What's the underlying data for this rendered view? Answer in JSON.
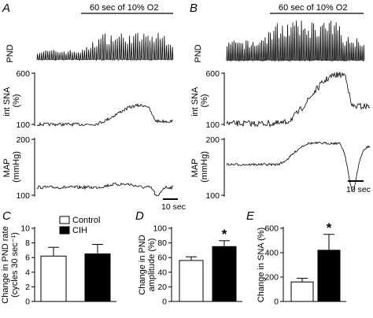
{
  "figure": {
    "panels": [
      {
        "id": "A",
        "label": "A",
        "stimulus": "60 sec of 10% O2"
      },
      {
        "id": "B",
        "label": "B",
        "stimulus": "60 sec of 10% O2"
      },
      {
        "id": "C",
        "label": "C"
      },
      {
        "id": "D",
        "label": "D"
      },
      {
        "id": "E",
        "label": "E"
      }
    ],
    "traces": {
      "pnd_label": "PND",
      "sna_label": "int SNA\n(%)",
      "map_label": "MAP\n(mmHg)",
      "sna_ticks": [
        "600",
        "100"
      ],
      "map_ticks": [
        "200",
        "100"
      ],
      "scale_bar_A": "10 sec",
      "scale_bar_B": "10 sec"
    },
    "legend": [
      {
        "label": "Control",
        "color": "#ffffff"
      },
      {
        "label": "CIH",
        "color": "#000000"
      }
    ]
  },
  "chart_data": [
    {
      "panel": "C",
      "type": "bar",
      "categories": [
        "Control",
        "CIH"
      ],
      "values": [
        6.2,
        6.5
      ],
      "errors": [
        1.2,
        1.3
      ],
      "colors": [
        "#ffffff",
        "#000000"
      ],
      "ylabel": "Change in PND rate\n(cycles 30 sec⁻¹)",
      "ylim": [
        0,
        10
      ],
      "yticks": [
        "0",
        "2",
        "4",
        "6",
        "8",
        "10"
      ],
      "significance": ""
    },
    {
      "panel": "D",
      "type": "bar",
      "categories": [
        "Control",
        "CIH"
      ],
      "values": [
        56,
        75
      ],
      "errors": [
        5,
        8
      ],
      "colors": [
        "#ffffff",
        "#000000"
      ],
      "ylabel": "Change in PND\namplitude (%)",
      "ylim": [
        0,
        100
      ],
      "yticks": [
        "0",
        "20",
        "40",
        "60",
        "80",
        "100"
      ],
      "significance": "*"
    },
    {
      "panel": "E",
      "type": "bar",
      "categories": [
        "Control",
        "CIH"
      ],
      "values": [
        160,
        420
      ],
      "errors": [
        30,
        130
      ],
      "colors": [
        "#ffffff",
        "#000000"
      ],
      "ylabel": "Change in SNA (%)",
      "ylim": [
        0,
        600
      ],
      "yticks": [
        "0",
        "200",
        "400",
        "600"
      ],
      "significance": "*"
    }
  ]
}
